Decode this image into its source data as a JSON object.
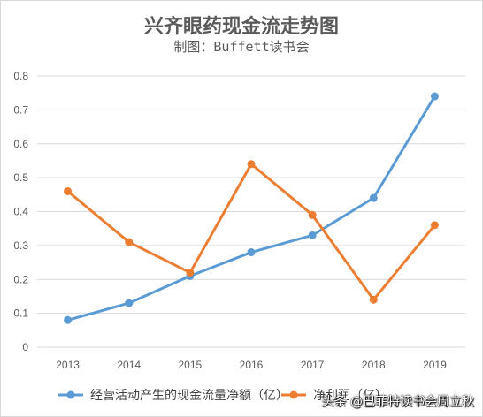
{
  "chart_data": {
    "type": "line",
    "title": "兴齐眼药现金流走势图",
    "subtitle": "制图：Buffett读书会",
    "categories": [
      "2013",
      "2014",
      "2015",
      "2016",
      "2017",
      "2018",
      "2019"
    ],
    "yticks": [
      "0",
      "0.1",
      "0.2",
      "0.3",
      "0.4",
      "0.5",
      "0.6",
      "0.7",
      "0.8"
    ],
    "ylim": [
      0,
      0.8
    ],
    "grid": true,
    "legend_position": "bottom",
    "series": [
      {
        "name": "经营活动产生的现金流量净额（亿）",
        "color": "#5b9bd5",
        "values": [
          0.08,
          0.13,
          0.21,
          0.28,
          0.33,
          0.44,
          0.74
        ]
      },
      {
        "name": "净利润（亿）",
        "color": "#ed7d31",
        "values": [
          0.46,
          0.31,
          0.22,
          0.54,
          0.39,
          0.14,
          0.36
        ]
      }
    ]
  },
  "watermark": "头条 @巴菲特读书会周立秋"
}
